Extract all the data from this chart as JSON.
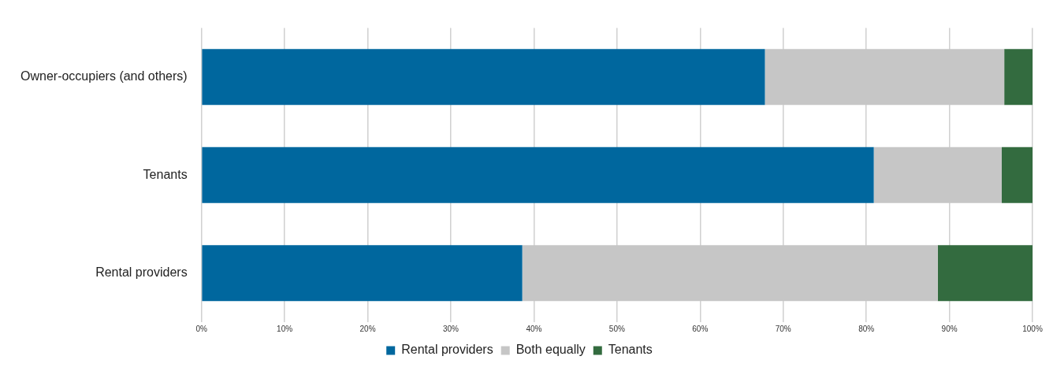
{
  "chart_data": {
    "type": "bar",
    "orientation": "horizontal",
    "stacked": true,
    "categories": [
      "Owner-occupiers (and others)",
      "Tenants",
      "Rental providers"
    ],
    "series": [
      {
        "name": "Rental providers",
        "color": "#00679e",
        "values": [
          67.8,
          80.9,
          38.6
        ]
      },
      {
        "name": "Both equally",
        "color": "#c6c6c6",
        "values": [
          28.8,
          15.4,
          50.0
        ]
      },
      {
        "name": "Tenants",
        "color": "#336b3f",
        "values": [
          3.4,
          3.7,
          11.4
        ]
      }
    ],
    "xlim": [
      0,
      100
    ],
    "xticks": [
      {
        "value": 0,
        "label": "0%"
      },
      {
        "value": 10,
        "label": "10%"
      },
      {
        "value": 20,
        "label": "20%"
      },
      {
        "value": 30,
        "label": "30%"
      },
      {
        "value": 40,
        "label": "40%"
      },
      {
        "value": 50,
        "label": "50%"
      },
      {
        "value": 60,
        "label": "60%"
      },
      {
        "value": 70,
        "label": "70%"
      },
      {
        "value": 80,
        "label": "80%"
      },
      {
        "value": 90,
        "label": "90%"
      },
      {
        "value": 100,
        "label": "100%"
      }
    ],
    "grid": "x",
    "legend": "bottom"
  }
}
